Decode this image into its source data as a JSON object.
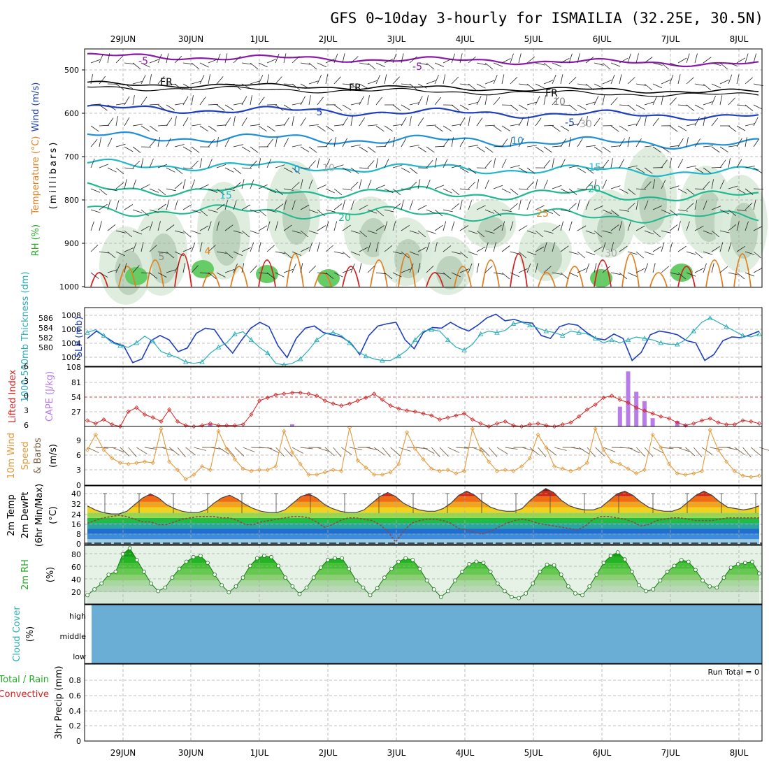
{
  "title": "GFS 0~10day 3-hourly for ISMAILIA (32.25E, 30.5N)",
  "days": [
    "29JUN",
    "30JUN",
    "1JUL",
    "2JUL",
    "3JUL",
    "4JUL",
    "5JUL",
    "6JUL",
    "7JUL",
    "8JUL"
  ],
  "colors": {
    "frame": "#000000",
    "grid": "#aaaaaa",
    "slp": "#1f3fbf",
    "thick": "#2aaeb8",
    "li": "#d62020",
    "cape": "#b77bea",
    "wind": "#e39a3c",
    "barb": "#7a6248",
    "dew": "#8b4a4a",
    "rh": "#22b422",
    "cloud": "#6aaed6"
  },
  "panels": {
    "upper": {
      "ylabel_wind": "Wind (m/s)",
      "ylabel_temp": "Temperature (°C)",
      "ylabel_rh": "RH (%)",
      "ylabel_units": "(millibars)",
      "levels": [
        "500",
        "600",
        "700",
        "800",
        "900",
        "1000"
      ],
      "contour_labels": [
        "-5",
        "-5",
        "FR",
        "FR",
        "FR",
        "5",
        "-5",
        "10",
        "10",
        "0",
        "15",
        "15",
        "20",
        "20",
        "25",
        "10",
        "30",
        "30",
        "5",
        "4"
      ]
    },
    "slp": {
      "ylabel_left": "1000-500mb Thickness (dm)",
      "ylabel_right": "SLP (mb)",
      "ticks_left": [
        "586",
        "584",
        "582",
        "580"
      ],
      "ticks_right": [
        "1008",
        "1006",
        "1004",
        "1002"
      ]
    },
    "cape": {
      "ylabel_left": "Lifted Index",
      "ylabel_right": "CAPE (J/kg)",
      "ticks_left": [
        "-6",
        "-3",
        "0",
        "3",
        "6"
      ],
      "ticks_right": [
        "108",
        "81",
        "54",
        "27"
      ]
    },
    "wind": {
      "ylabel_a": "10m Wind",
      "ylabel_b": "Speed",
      "ylabel_c": "& Barbs",
      "units": "(m/s)",
      "ticks": [
        "9",
        "6",
        "3",
        "0"
      ]
    },
    "temp": {
      "ylabel_a": "2m Temp",
      "ylabel_b": "2m DewPt",
      "ylabel_c": "(6hr Min/Max)",
      "units": "(°C)",
      "ticks": [
        "40",
        "32",
        "24",
        "16",
        "8",
        "0"
      ]
    },
    "rh": {
      "ylabel": "2m RH",
      "units": "(%)",
      "ticks": [
        "80",
        "60",
        "40",
        "20"
      ]
    },
    "cloud": {
      "ylabel": "Cloud Cover",
      "units": "(%)",
      "ticks": [
        "high",
        "middle",
        "low"
      ]
    },
    "precip": {
      "ylabel_a": "Total / Rain",
      "ylabel_b": "Convective",
      "ylabel_c": "3hr Precip (mm)",
      "run_total": "Run Total = 0",
      "ticks": [
        "0.8",
        "0.6",
        "0.4",
        "0.2",
        "0"
      ]
    }
  },
  "chart_data": [
    {
      "type": "line",
      "name": "sea-level-pressure",
      "x_unit": "hours since first plotted step (3-hourly)",
      "series": [
        {
          "name": "SLP (mb)",
          "values": [
            1004.8,
            1005.8,
            1005.0,
            1004.2,
            1003.8,
            1001.5,
            1002.0,
            1004.5,
            1005.2,
            1004.6,
            1003.0,
            1003.5,
            1005.5,
            1006.2,
            1006.0,
            1004.2,
            1002.8,
            1004.6,
            1006.2,
            1007.0,
            1006.4,
            1003.8,
            1002.2,
            1004.8,
            1006.2,
            1006.5,
            1005.6,
            1005.3,
            1005.0,
            1004.2,
            1002.6,
            1005.2,
            1006.5,
            1006.8,
            1007.0,
            1004.6,
            1003.4,
            1005.6,
            1006.3,
            1006.2,
            1007.0,
            1006.3,
            1005.8,
            1006.6,
            1007.6,
            1008.1,
            1007.2,
            1007.4,
            1007.0,
            1006.9,
            1005.2,
            1004.8,
            1006.4,
            1006.8,
            1006.6,
            1005.6,
            1004.8,
            1004.6,
            1005.4,
            1004.8,
            1001.8,
            1002.9,
            1005.3,
            1005.8,
            1005.6,
            1005.3,
            1004.5,
            1004.2,
            1001.8,
            1002.6,
            1004.5,
            1005.0,
            1004.9,
            1005.3,
            1005.8
          ]
        },
        {
          "name": "1000-500mb Thickness (dm)",
          "values": [
            583.6,
            584.0,
            583.2,
            582.2,
            581.8,
            581.6,
            582.2,
            583.1,
            582.4,
            581.0,
            580.6,
            580.2,
            579.6,
            579.4,
            579.6,
            580.8,
            581.6,
            582.2,
            583.4,
            583.7,
            582.6,
            581.6,
            580.8,
            579.4,
            579.2,
            579.4,
            580.0,
            581.2,
            582.6,
            583.4,
            583.6,
            583.2,
            582.2,
            581.0,
            580.4,
            580.0,
            579.8,
            579.8,
            580.4,
            581.2,
            582.6,
            583.8,
            584.0,
            583.8,
            582.6,
            581.6,
            581.2,
            582.0,
            583.4,
            583.8,
            583.6,
            583.9,
            584.8,
            585.0,
            584.6,
            584.2,
            583.8,
            583.6,
            583.2,
            583.8,
            583.6,
            583.4,
            582.8,
            582.2,
            582.6,
            582.2,
            582.6,
            583.0,
            582.8,
            582.6,
            582.2,
            582.0,
            582.0,
            582.6,
            583.8,
            585.0,
            585.6,
            585.0,
            584.4,
            583.8,
            583.2,
            583.0,
            583.4
          ]
        }
      ],
      "ylim_left": [
        579,
        587
      ],
      "ylim_right": [
        1001,
        1009
      ]
    },
    {
      "type": "bar",
      "name": "cape-lifted-index",
      "series": [
        {
          "name": "Lifted Index",
          "values": [
            4.8,
            5.4,
            4.6,
            5.6,
            6.0,
            3.0,
            2.2,
            3.6,
            4.2,
            5.0,
            2.6,
            5.0,
            5.8,
            6.0,
            5.8,
            5.4,
            5.8,
            5.8,
            5.8,
            5.6,
            3.6,
            0.8,
            0.2,
            -0.4,
            -0.6,
            -0.8,
            -0.8,
            -0.6,
            -0.2,
            0.8,
            1.4,
            1.8,
            1.4,
            0.8,
            0.2,
            -0.6,
            0.6,
            1.8,
            2.4,
            2.8,
            3.0,
            3.4,
            3.8,
            4.6,
            4.2,
            3.8,
            3.4,
            4.6,
            5.4,
            6.0,
            5.4,
            5.0,
            5.8,
            6.0,
            5.6,
            5.4,
            5.8,
            6.0,
            5.6,
            5.2,
            4.0,
            2.6,
            1.6,
            0.2,
            -0.2,
            0.6,
            1.2,
            2.2,
            2.8,
            3.4,
            4.0,
            4.4,
            5.2,
            5.8,
            5.4,
            4.8,
            4.4,
            5.2,
            5.6,
            5.6,
            4.8,
            5.0,
            5.4
          ]
        },
        {
          "name": "CAPE (J/kg)",
          "values": [
            0,
            0,
            0,
            0,
            0,
            0,
            0,
            0,
            0,
            0,
            0,
            0,
            0,
            0,
            0,
            5,
            0,
            0,
            0,
            0,
            0,
            0,
            0,
            0,
            0,
            4,
            0,
            0,
            0,
            0,
            0,
            0,
            0,
            0,
            0,
            0,
            0,
            0,
            0,
            0,
            0,
            0,
            0,
            0,
            0,
            0,
            0,
            0,
            0,
            0,
            0,
            0,
            0,
            0,
            0,
            0,
            0,
            0,
            0,
            0,
            0,
            0,
            0,
            0,
            0,
            36,
            100,
            63,
            46,
            15,
            0,
            0,
            10,
            4,
            0,
            0,
            0,
            0,
            0,
            0,
            0,
            0,
            0
          ]
        }
      ],
      "ylim_left": [
        6,
        -6
      ],
      "ylim_right": [
        0,
        108
      ]
    },
    {
      "type": "line",
      "name": "wind-speed",
      "series": [
        {
          "name": "10m Wind Speed (m/s)",
          "values": [
            6.0,
            8.6,
            6.0,
            4.6,
            3.8,
            3.6,
            3.8,
            4.0,
            3.8,
            9.6,
            4.0,
            2.6,
            1.0,
            1.8,
            3.2,
            2.6,
            9.2,
            6.2,
            4.4,
            2.8,
            2.4,
            2.6,
            2.6,
            3.2,
            9.2,
            5.6,
            3.6,
            1.8,
            1.8,
            2.2,
            2.6,
            2.4,
            9.8,
            4.2,
            3.0,
            1.8,
            1.8,
            2.2,
            3.6,
            9.0,
            6.2,
            4.4,
            2.8,
            2.4,
            2.6,
            2.0,
            2.4,
            9.6,
            6.0,
            4.0,
            2.4,
            2.6,
            2.4,
            3.2,
            4.6,
            8.6,
            6.4,
            3.2,
            2.8,
            2.4,
            2.8,
            3.8,
            9.6,
            6.0,
            4.0,
            3.6,
            2.8,
            2.0,
            2.6,
            8.6,
            6.4,
            3.6,
            2.0,
            1.8,
            2.0,
            2.4,
            9.4,
            6.0,
            4.0,
            2.4,
            1.6,
            1.4,
            1.6
          ]
        }
      ],
      "ylim": [
        0,
        10
      ]
    },
    {
      "type": "area",
      "name": "temp-dewpoint",
      "series": [
        {
          "name": "2m Temp (°C)",
          "values": [
            29,
            26,
            24,
            23,
            23,
            25,
            30,
            35,
            38,
            35,
            30,
            27,
            25,
            24,
            24,
            26,
            31,
            35,
            37,
            34,
            30,
            27,
            25,
            24,
            24,
            26,
            31,
            36,
            38,
            35,
            30,
            27,
            25,
            24,
            24,
            26,
            31,
            36,
            39,
            36,
            31,
            28,
            26,
            25,
            25,
            27,
            31,
            37,
            40,
            37,
            32,
            28,
            26,
            25,
            25,
            27,
            33,
            38,
            42,
            39,
            33,
            29,
            27,
            26,
            26,
            28,
            33,
            38,
            40,
            37,
            32,
            28,
            26,
            25,
            25,
            27,
            32,
            37,
            40,
            37,
            32,
            28,
            27,
            26,
            27,
            29
          ]
        },
        {
          "name": "2m DewPt (°C)",
          "values": [
            16,
            18,
            20,
            21,
            22,
            21,
            19,
            17,
            17,
            15,
            15,
            17,
            19,
            20,
            21,
            21,
            21,
            20,
            20,
            18,
            15,
            15,
            17,
            18,
            19,
            20,
            21,
            21,
            20,
            17,
            13,
            15,
            18,
            20,
            20,
            19,
            18,
            15,
            10,
            2,
            10,
            16,
            18,
            19,
            19,
            18,
            16,
            12,
            11,
            9,
            8,
            10,
            13,
            16,
            18,
            19,
            18,
            16,
            15,
            14,
            13,
            12,
            11,
            14,
            19,
            21,
            21,
            20,
            19,
            17,
            14,
            15,
            18,
            19,
            20,
            20,
            19,
            18,
            18,
            18,
            19,
            20,
            20,
            20,
            20,
            20
          ]
        }
      ],
      "ylim": [
        0,
        44
      ]
    },
    {
      "type": "area",
      "name": "relative-humidity",
      "series": [
        {
          "name": "2m RH (%)",
          "values": [
            15,
            25,
            35,
            50,
            55,
            85,
            95,
            75,
            55,
            35,
            22,
            28,
            45,
            60,
            72,
            80,
            82,
            70,
            50,
            32,
            20,
            30,
            45,
            65,
            78,
            82,
            80,
            65,
            45,
            30,
            17,
            28,
            45,
            62,
            75,
            78,
            78,
            60,
            40,
            28,
            15,
            27,
            45,
            60,
            72,
            78,
            75,
            60,
            40,
            25,
            12,
            22,
            40,
            55,
            68,
            72,
            70,
            55,
            35,
            22,
            12,
            10,
            18,
            35,
            55,
            67,
            66,
            50,
            30,
            18,
            15,
            30,
            50,
            70,
            82,
            88,
            76,
            55,
            32,
            22,
            25,
            40,
            55,
            65,
            75,
            72,
            58,
            40,
            30,
            28,
            45,
            62,
            68,
            70,
            72,
            52
          ]
        }
      ],
      "ylim": [
        0,
        100
      ]
    },
    {
      "type": "bar",
      "name": "precipitation",
      "series": [
        {
          "name": "3hr Precip (mm)",
          "values": [
            0
          ]
        }
      ],
      "ylim": [
        0,
        1
      ]
    }
  ]
}
